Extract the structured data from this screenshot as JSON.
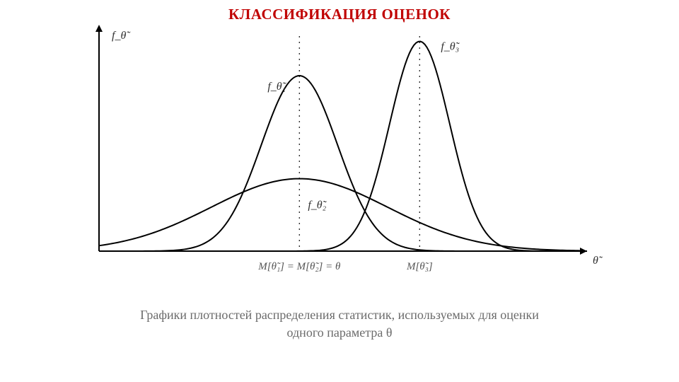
{
  "title": "КЛАССИФИКАЦИЯ ОЦЕНОК",
  "caption_line1": "Графики плотностей распределения статистик, используемых для оценки",
  "caption_line2": "одного параметра θ",
  "chart": {
    "type": "line",
    "background_color": "#ffffff",
    "axis_color": "#000000",
    "axis_width": 2,
    "curve_color": "#000000",
    "curve_width": 2,
    "dash_color": "#303030",
    "dash_pattern": "2 6",
    "xlim": [
      0,
      12
    ],
    "ylim": [
      0,
      1.15
    ],
    "y_axis_label": "f_θ̃",
    "x_axis_label": "θ̃",
    "label_fontsize": 16,
    "label_color": "#303030",
    "tick_label_color": "#555555",
    "tick_fontsize": 15,
    "curves": [
      {
        "name": "theta1",
        "label": "f_θ̃₁",
        "mu": 5.0,
        "sigma": 0.95,
        "amplitude": 0.92
      },
      {
        "name": "theta2",
        "label": "f_θ̃₂",
        "mu": 5.0,
        "sigma": 2.2,
        "amplitude": 0.38
      },
      {
        "name": "theta3",
        "label": "f_θ̃₃",
        "mu": 8.0,
        "sigma": 0.75,
        "amplitude": 1.1
      }
    ],
    "vlines": [
      {
        "x": 5.0,
        "label": "M[θ̃₁] = M[θ̃₂] = θ"
      },
      {
        "x": 8.0,
        "label": "M[θ̃₃]"
      }
    ]
  }
}
